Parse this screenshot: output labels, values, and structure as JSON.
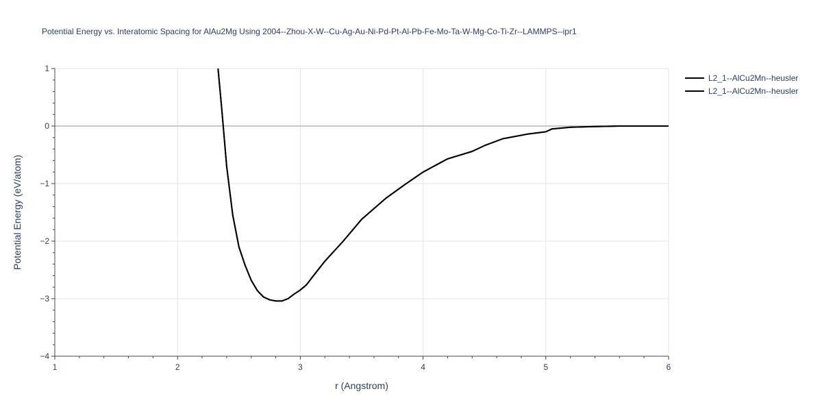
{
  "chart_data": {
    "type": "line",
    "title": "Potential Energy vs. Interatomic Spacing for AlAu2Mg Using 2004--Zhou-X-W--Cu-Ag-Au-Ni-Pd-Pt-Al-Pb-Fe-Mo-Ta-W-Mg-Co-Ti-Zr--LAMMPS--ipr1",
    "xlabel": "r (Angstrom)",
    "ylabel": "Potential Energy (eV/atom)",
    "xlim": [
      1,
      6
    ],
    "ylim": [
      -4,
      1
    ],
    "x_ticks": [
      1,
      2,
      3,
      4,
      5,
      6
    ],
    "x_tick_labels": [
      "1",
      "2",
      "3",
      "4",
      "5",
      "6"
    ],
    "y_ticks": [
      -4,
      -3,
      -2,
      -1,
      0,
      1
    ],
    "y_tick_labels": [
      "−4",
      "−3",
      "−2",
      "−1",
      "0",
      "1"
    ],
    "grid": true,
    "legend_position": "top-right",
    "series": [
      {
        "name": "L2_1--AlCu2Mn--heusler",
        "color": "#000000",
        "x": [
          2.33,
          2.36,
          2.4,
          2.45,
          2.5,
          2.55,
          2.6,
          2.65,
          2.7,
          2.75,
          2.8,
          2.85,
          2.9,
          2.95,
          3.0,
          3.05,
          3.1,
          3.2,
          3.35,
          3.5,
          3.7,
          3.85,
          4.0,
          4.2,
          4.4,
          4.5,
          4.65,
          4.85,
          5.0,
          5.05,
          5.2,
          5.4,
          5.6,
          5.8,
          6.0
        ],
        "y": [
          1.0,
          0.3,
          -0.7,
          -1.55,
          -2.1,
          -2.42,
          -2.68,
          -2.86,
          -2.97,
          -3.02,
          -3.04,
          -3.04,
          -3.0,
          -2.92,
          -2.85,
          -2.76,
          -2.62,
          -2.35,
          -2.0,
          -1.62,
          -1.25,
          -1.02,
          -0.8,
          -0.57,
          -0.44,
          -0.34,
          -0.22,
          -0.14,
          -0.1,
          -0.05,
          -0.02,
          -0.01,
          0.0,
          0.0,
          0.0
        ]
      },
      {
        "name": "L2_1--AlCu2Mn--heusler",
        "color": "#000000",
        "x": [
          2.33,
          2.36,
          2.4,
          2.45,
          2.5,
          2.55,
          2.6,
          2.65,
          2.7,
          2.75,
          2.8,
          2.85,
          2.9,
          2.95,
          3.0,
          3.05,
          3.1,
          3.2,
          3.35,
          3.5,
          3.7,
          3.85,
          4.0,
          4.2,
          4.4,
          4.5,
          4.65,
          4.85,
          5.0,
          5.05,
          5.2,
          5.4,
          5.6,
          5.8,
          6.0
        ],
        "y": [
          1.0,
          0.3,
          -0.7,
          -1.55,
          -2.1,
          -2.42,
          -2.68,
          -2.86,
          -2.97,
          -3.02,
          -3.04,
          -3.04,
          -3.0,
          -2.92,
          -2.85,
          -2.76,
          -2.62,
          -2.35,
          -2.0,
          -1.62,
          -1.25,
          -1.02,
          -0.8,
          -0.57,
          -0.44,
          -0.34,
          -0.22,
          -0.14,
          -0.1,
          -0.05,
          -0.02,
          -0.01,
          0.0,
          0.0,
          0.0
        ]
      }
    ]
  }
}
